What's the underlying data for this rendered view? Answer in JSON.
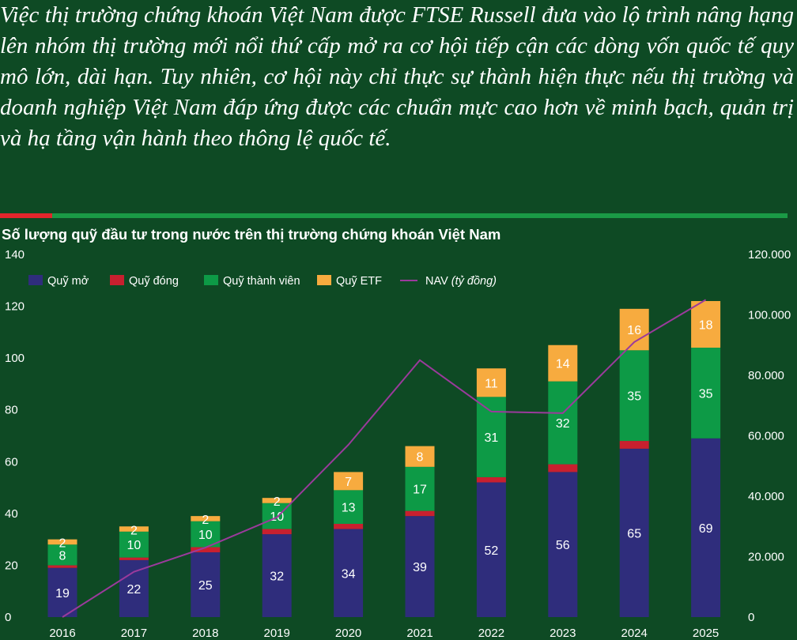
{
  "intro_text": "Việc thị trường chứng khoán Việt Nam được FTSE Russell đưa vào lộ trình nâng hạng lên nhóm thị trường mới nổi thứ cấp mở ra cơ hội tiếp cận các dòng vốn quốc tế quy mô lớn, dài hạn. Tuy nhiên, cơ hội này chỉ thực sự thành hiện thực nếu thị trường và doanh nghiệp Việt Nam đáp ứng được các chuẩn mực cao hơn về minh bạch, quản trị và hạ tầng vận hành theo thông lệ quốc tế.",
  "colors": {
    "background": "#0e4a24",
    "divider_red": "#e2262c",
    "divider_green": "#1a9a46"
  },
  "chart_data": {
    "type": "bar",
    "stacked": true,
    "title": "Số lượng quỹ đầu tư trong nước trên thị trường chứng khoán Việt Nam",
    "categories": [
      "2016",
      "2017",
      "2018",
      "2019",
      "2020",
      "2021",
      "2022",
      "2023",
      "2024",
      "2025"
    ],
    "series": [
      {
        "name": "Quỹ mở",
        "color": "#2f2d7c",
        "values": [
          19,
          22,
          25,
          32,
          34,
          39,
          52,
          56,
          65,
          69
        ]
      },
      {
        "name": "Quỹ đóng",
        "color": "#c8202f",
        "values": [
          1,
          1,
          2,
          2,
          2,
          2,
          2,
          3,
          3,
          0
        ]
      },
      {
        "name": "Quỹ thành viên",
        "color": "#0d9a46",
        "values": [
          8,
          10,
          10,
          10,
          13,
          17,
          31,
          32,
          35,
          35
        ]
      },
      {
        "name": "Quỹ ETF",
        "color": "#f7ab3f",
        "values": [
          2,
          2,
          2,
          2,
          7,
          8,
          11,
          14,
          16,
          18
        ]
      }
    ],
    "line_series": {
      "name": "NAV",
      "unit": "(tỷ đồng)",
      "color": "#9b3a9c",
      "axis": "right",
      "values": [
        0,
        15000,
        23000,
        33000,
        57000,
        85000,
        68000,
        67500,
        91000,
        105000
      ]
    },
    "ylim": [
      0,
      140
    ],
    "yticks": [
      0,
      20,
      40,
      60,
      80,
      100,
      120,
      140
    ],
    "ylim_right": [
      0,
      120000
    ],
    "yticks_right": [
      "0",
      "20.000",
      "40.000",
      "60.000",
      "80.000",
      "100.000",
      "120.000"
    ],
    "legend_position": "top-left",
    "grid": false
  }
}
